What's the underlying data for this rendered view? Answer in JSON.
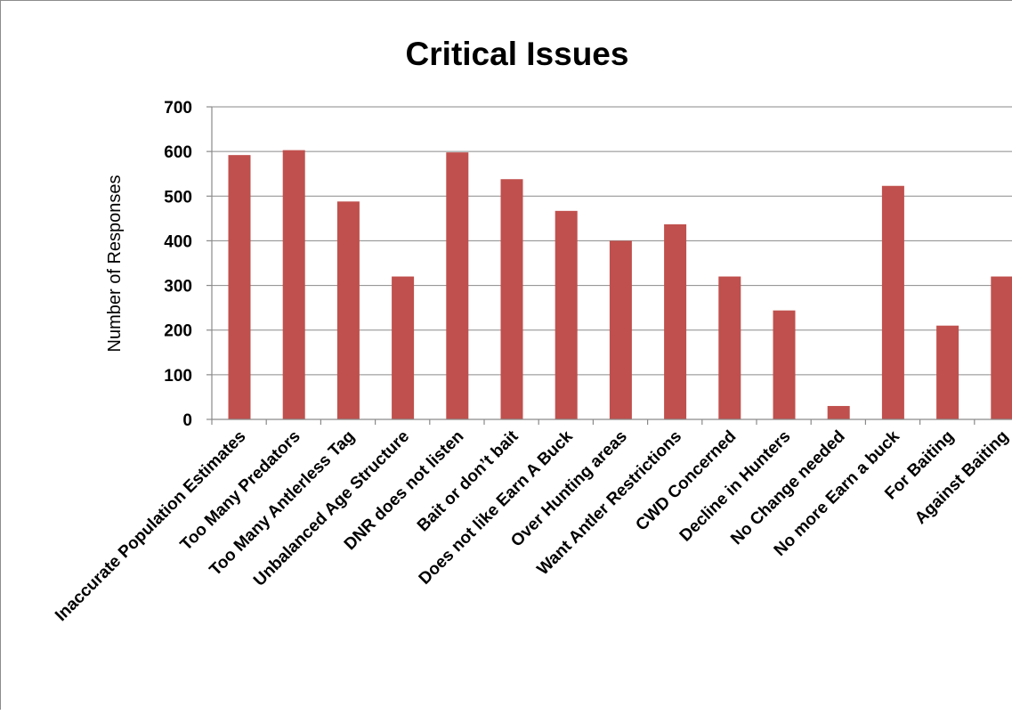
{
  "chart_data": {
    "type": "bar",
    "title": "Critical Issues",
    "xlabel": "",
    "ylabel": "Number of Responses",
    "ylim": [
      0,
      700
    ],
    "yticks": [
      0,
      100,
      200,
      300,
      400,
      500,
      600,
      700
    ],
    "grid": true,
    "legend": "none",
    "bar_color": "#c0504d",
    "categories": [
      "Inaccurate Population Estimates",
      "Too Many Predators",
      "Too Many Antlerless Tag",
      "Unbalanced Age Structure",
      "DNR does not listen",
      "Bait or don’t bait",
      "Does not like Earn A Buck",
      "Over Hunting areas",
      "Want Antler Restrictions",
      "CWD Concerned",
      "Decline in Hunters",
      "No Change needed",
      "No more Earn a buck",
      "For Baiting",
      "Against Baiting"
    ],
    "values": [
      592,
      603,
      488,
      320,
      598,
      538,
      467,
      400,
      437,
      320,
      244,
      30,
      523,
      210,
      320
    ]
  }
}
